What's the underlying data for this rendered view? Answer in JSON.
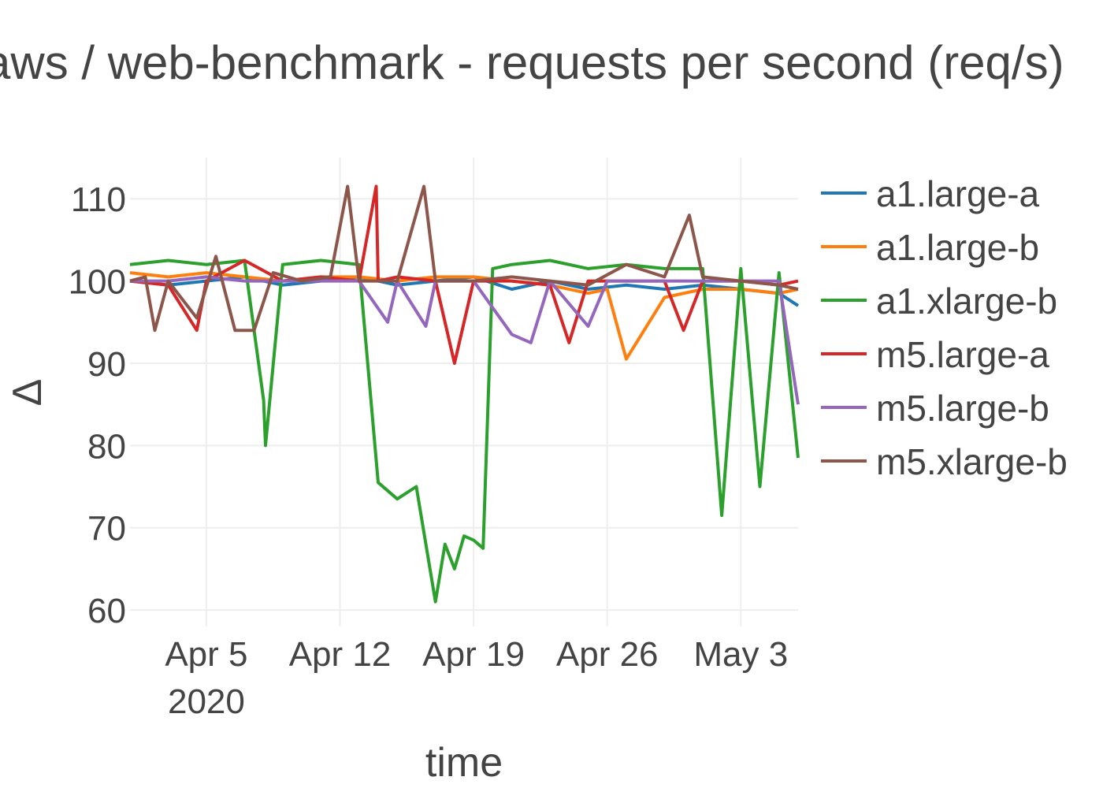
{
  "chart_data": {
    "type": "line",
    "title": "aws / web-benchmark - requests per second (req/s)",
    "xlabel": "time",
    "ylabel": "Δ",
    "ylim": [
      58,
      115
    ],
    "yticks": [
      60,
      70,
      80,
      90,
      100,
      110
    ],
    "xlim": [
      "2020-04-01",
      "2020-05-06"
    ],
    "xticks": [
      {
        "date": "2020-04-05",
        "label": "Apr 5",
        "sublabel": "2020"
      },
      {
        "date": "2020-04-12",
        "label": "Apr 12",
        "sublabel": ""
      },
      {
        "date": "2020-04-19",
        "label": "Apr 19",
        "sublabel": ""
      },
      {
        "date": "2020-04-26",
        "label": "Apr 26",
        "sublabel": ""
      },
      {
        "date": "2020-05-03",
        "label": "May 3",
        "sublabel": ""
      }
    ],
    "grid": true,
    "legend_position": "right",
    "series": [
      {
        "name": "a1.large-a",
        "color": "#1f77b4",
        "x": [
          "2020-04-01",
          "2020-04-03",
          "2020-04-05",
          "2020-04-07",
          "2020-04-09",
          "2020-04-11",
          "2020-04-13",
          "2020-04-15",
          "2020-04-17",
          "2020-04-19",
          "2020-04-21",
          "2020-04-23",
          "2020-04-25",
          "2020-04-27",
          "2020-04-29",
          "2020-05-01",
          "2020-05-03",
          "2020-05-05",
          "2020-05-06"
        ],
        "y": [
          100,
          99.5,
          100,
          100.5,
          99.5,
          100,
          100.5,
          99.5,
          100,
          100.5,
          99,
          100,
          99,
          99.5,
          99,
          99.5,
          99,
          98.5,
          97
        ]
      },
      {
        "name": "a1.large-b",
        "color": "#ff7f0e",
        "x": [
          "2020-04-01",
          "2020-04-03",
          "2020-04-05",
          "2020-04-07",
          "2020-04-09",
          "2020-04-11",
          "2020-04-13",
          "2020-04-15",
          "2020-04-17",
          "2020-04-19",
          "2020-04-21",
          "2020-04-23",
          "2020-04-25",
          "2020-04-26",
          "2020-04-27",
          "2020-04-29",
          "2020-05-01",
          "2020-05-03",
          "2020-05-05",
          "2020-05-06"
        ],
        "y": [
          101,
          100.5,
          101,
          100.5,
          100,
          100.5,
          100.5,
          100,
          100.5,
          100.5,
          100,
          99.5,
          98.5,
          99,
          90.5,
          98,
          99,
          99,
          98.5,
          99
        ]
      },
      {
        "name": "a1.xlarge-b",
        "color": "#2ca02c",
        "x": [
          "2020-04-01",
          "2020-04-03",
          "2020-04-05",
          "2020-04-07",
          "2020-04-08",
          "2020-04-08.1",
          "2020-04-09",
          "2020-04-11",
          "2020-04-13",
          "2020-04-14",
          "2020-04-15",
          "2020-04-16",
          "2020-04-17",
          "2020-04-17.5",
          "2020-04-18",
          "2020-04-18.5",
          "2020-04-19",
          "2020-04-19.5",
          "2020-04-20",
          "2020-04-21",
          "2020-04-23",
          "2020-04-25",
          "2020-04-27",
          "2020-04-29",
          "2020-05-01",
          "2020-05-02",
          "2020-05-03",
          "2020-05-04",
          "2020-05-05",
          "2020-05-06"
        ],
        "y": [
          102,
          102.5,
          102,
          102.5,
          85.5,
          80,
          102,
          102.5,
          102,
          75.5,
          73.5,
          75,
          61,
          68,
          65,
          69,
          68.5,
          67.5,
          101.5,
          102,
          102.5,
          101.5,
          102,
          101.5,
          101.5,
          71.5,
          101.5,
          75,
          101,
          78.5
        ]
      },
      {
        "name": "m5.large-a",
        "color": "#d62728",
        "x": [
          "2020-04-01",
          "2020-04-03",
          "2020-04-04.5",
          "2020-04-05",
          "2020-04-07",
          "2020-04-09",
          "2020-04-11",
          "2020-04-13",
          "2020-04-13.9",
          "2020-04-14",
          "2020-04-15",
          "2020-04-17",
          "2020-04-18",
          "2020-04-19",
          "2020-04-21",
          "2020-04-23",
          "2020-04-24",
          "2020-04-25",
          "2020-04-27",
          "2020-04-29",
          "2020-04-30",
          "2020-05-01",
          "2020-05-03",
          "2020-05-05",
          "2020-05-06"
        ],
        "y": [
          100,
          99.5,
          94,
          100,
          102.5,
          100,
          100.5,
          100,
          111.5,
          100,
          100.5,
          100,
          90,
          100,
          100,
          99.5,
          92.5,
          100,
          100,
          100,
          94,
          100,
          100,
          99.5,
          100
        ]
      },
      {
        "name": "m5.large-b",
        "color": "#9467bd",
        "x": [
          "2020-04-01",
          "2020-04-03",
          "2020-04-05",
          "2020-04-07",
          "2020-04-09",
          "2020-04-11",
          "2020-04-13",
          "2020-04-14.5",
          "2020-04-15",
          "2020-04-16.5",
          "2020-04-17",
          "2020-04-19",
          "2020-04-21",
          "2020-04-22",
          "2020-04-23",
          "2020-04-25",
          "2020-04-26",
          "2020-04-27",
          "2020-04-29",
          "2020-05-01",
          "2020-05-03",
          "2020-05-05",
          "2020-05-06"
        ],
        "y": [
          100,
          100,
          100.5,
          100,
          100,
          100,
          100,
          95,
          100,
          94.5,
          100,
          100,
          93.5,
          92.5,
          100,
          94.5,
          100,
          100,
          100,
          100,
          100,
          100,
          85
        ]
      },
      {
        "name": "m5.xlarge-b",
        "color": "#8c564b",
        "x": [
          "2020-04-01",
          "2020-04-01.8",
          "2020-04-02.3",
          "2020-04-03",
          "2020-04-04.5",
          "2020-04-05.5",
          "2020-04-06.5",
          "2020-04-07.5",
          "2020-04-08.5",
          "2020-04-10",
          "2020-04-11.5",
          "2020-04-12.4",
          "2020-04-13",
          "2020-04-15",
          "2020-04-16.4",
          "2020-04-17",
          "2020-04-19",
          "2020-04-21",
          "2020-04-23",
          "2020-04-25",
          "2020-04-27",
          "2020-04-29",
          "2020-04-30.3",
          "2020-05-01",
          "2020-05-03",
          "2020-05-05",
          "2020-05-06"
        ],
        "y": [
          100,
          100.5,
          94,
          100,
          95.5,
          103,
          94,
          94,
          101,
          100,
          100.5,
          111.5,
          100,
          100,
          111.5,
          100,
          100,
          100.5,
          100,
          99.5,
          102,
          100.5,
          108,
          100.5,
          100,
          99.5,
          99
        ]
      }
    ]
  }
}
